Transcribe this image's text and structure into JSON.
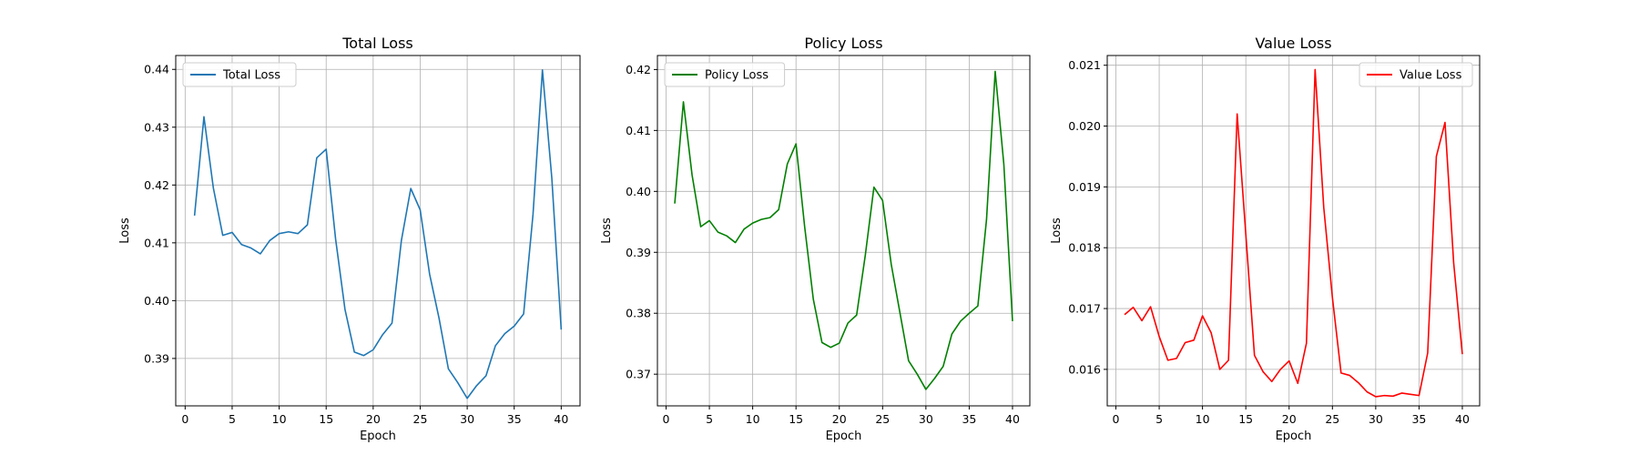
{
  "chart_data": [
    {
      "type": "line",
      "title": "Total Loss",
      "xlabel": "Epoch",
      "ylabel": "Loss",
      "xlim": [
        -1,
        42
      ],
      "ylim": [
        0.3818,
        0.4424
      ],
      "xticks": [
        "0",
        "5",
        "10",
        "15",
        "20",
        "25",
        "30",
        "35",
        "40"
      ],
      "yticks": [
        "0.39",
        "0.40",
        "0.41",
        "0.42",
        "0.43",
        "0.44"
      ],
      "grid": true,
      "legend_position": "top-left",
      "series": [
        {
          "name": "Total Loss",
          "color": "#1f77b4",
          "x": [
            1,
            2,
            3,
            4,
            5,
            6,
            7,
            8,
            9,
            10,
            11,
            12,
            13,
            14,
            15,
            16,
            17,
            18,
            19,
            20,
            21,
            22,
            23,
            24,
            25,
            26,
            27,
            28,
            29,
            30,
            31,
            32,
            33,
            34,
            35,
            36,
            37,
            38,
            39,
            40
          ],
          "values": [
            0.4147,
            0.4318,
            0.4195,
            0.4113,
            0.4118,
            0.4097,
            0.4091,
            0.4081,
            0.4104,
            0.4116,
            0.4119,
            0.4116,
            0.4131,
            0.4247,
            0.4262,
            0.4107,
            0.3985,
            0.3911,
            0.3905,
            0.3915,
            0.3941,
            0.3961,
            0.4104,
            0.4194,
            0.4157,
            0.4046,
            0.397,
            0.3882,
            0.3858,
            0.3831,
            0.3853,
            0.387,
            0.3922,
            0.3943,
            0.3956,
            0.3977,
            0.4149,
            0.4399,
            0.4212,
            0.395
          ]
        }
      ]
    },
    {
      "type": "line",
      "title": "Policy Loss",
      "xlabel": "Epoch",
      "ylabel": "Loss",
      "xlim": [
        -1,
        42
      ],
      "ylim": [
        0.3648,
        0.4223
      ],
      "xticks": [
        "0",
        "5",
        "10",
        "15",
        "20",
        "25",
        "30",
        "35",
        "40"
      ],
      "yticks": [
        "0.37",
        "0.38",
        "0.39",
        "0.40",
        "0.41",
        "0.42"
      ],
      "grid": true,
      "legend_position": "top-left",
      "series": [
        {
          "name": "Policy Loss",
          "color": "#008000",
          "x": [
            1,
            2,
            3,
            4,
            5,
            6,
            7,
            8,
            9,
            10,
            11,
            12,
            13,
            14,
            15,
            16,
            17,
            18,
            19,
            20,
            21,
            22,
            23,
            24,
            25,
            26,
            27,
            28,
            29,
            30,
            31,
            32,
            33,
            34,
            35,
            36,
            37,
            38,
            39,
            40
          ],
          "values": [
            0.398,
            0.4147,
            0.4027,
            0.3942,
            0.3952,
            0.3933,
            0.3927,
            0.3916,
            0.3938,
            0.3948,
            0.3954,
            0.3957,
            0.397,
            0.4045,
            0.4078,
            0.3942,
            0.3823,
            0.3752,
            0.3744,
            0.3751,
            0.3784,
            0.3797,
            0.3895,
            0.4007,
            0.3985,
            0.388,
            0.3801,
            0.3722,
            0.37,
            0.3675,
            0.3693,
            0.3713,
            0.3766,
            0.3787,
            0.38,
            0.3812,
            0.3954,
            0.4197,
            0.4044,
            0.3787
          ]
        }
      ]
    },
    {
      "type": "line",
      "title": "Value Loss",
      "xlabel": "Epoch",
      "ylabel": "Loss",
      "xlim": [
        -1,
        42
      ],
      "ylim": [
        0.0154,
        0.02116
      ],
      "xticks": [
        "0",
        "5",
        "10",
        "15",
        "20",
        "25",
        "30",
        "35",
        "40"
      ],
      "yticks": [
        "0.016",
        "0.017",
        "0.018",
        "0.019",
        "0.020",
        "0.021"
      ],
      "grid": true,
      "legend_position": "top-right",
      "series": [
        {
          "name": "Value Loss",
          "color": "#ff0000",
          "x": [
            1,
            2,
            3,
            4,
            5,
            6,
            7,
            8,
            9,
            10,
            11,
            12,
            13,
            14,
            15,
            16,
            17,
            18,
            19,
            20,
            21,
            22,
            23,
            24,
            25,
            26,
            27,
            28,
            29,
            30,
            31,
            32,
            33,
            34,
            35,
            36,
            37,
            38,
            39,
            40
          ],
          "values": [
            0.0169,
            0.01702,
            0.0168,
            0.01703,
            0.01654,
            0.01615,
            0.01618,
            0.01644,
            0.01648,
            0.01688,
            0.0166,
            0.016,
            0.01615,
            0.0202,
            0.01822,
            0.01623,
            0.01596,
            0.0158,
            0.016,
            0.01614,
            0.01577,
            0.01643,
            0.02093,
            0.01866,
            0.01718,
            0.01594,
            0.0159,
            0.01578,
            0.01563,
            0.01555,
            0.01557,
            0.01556,
            0.01561,
            0.01559,
            0.01557,
            0.01627,
            0.0195,
            0.02006,
            0.01775,
            0.01625
          ]
        }
      ]
    }
  ]
}
